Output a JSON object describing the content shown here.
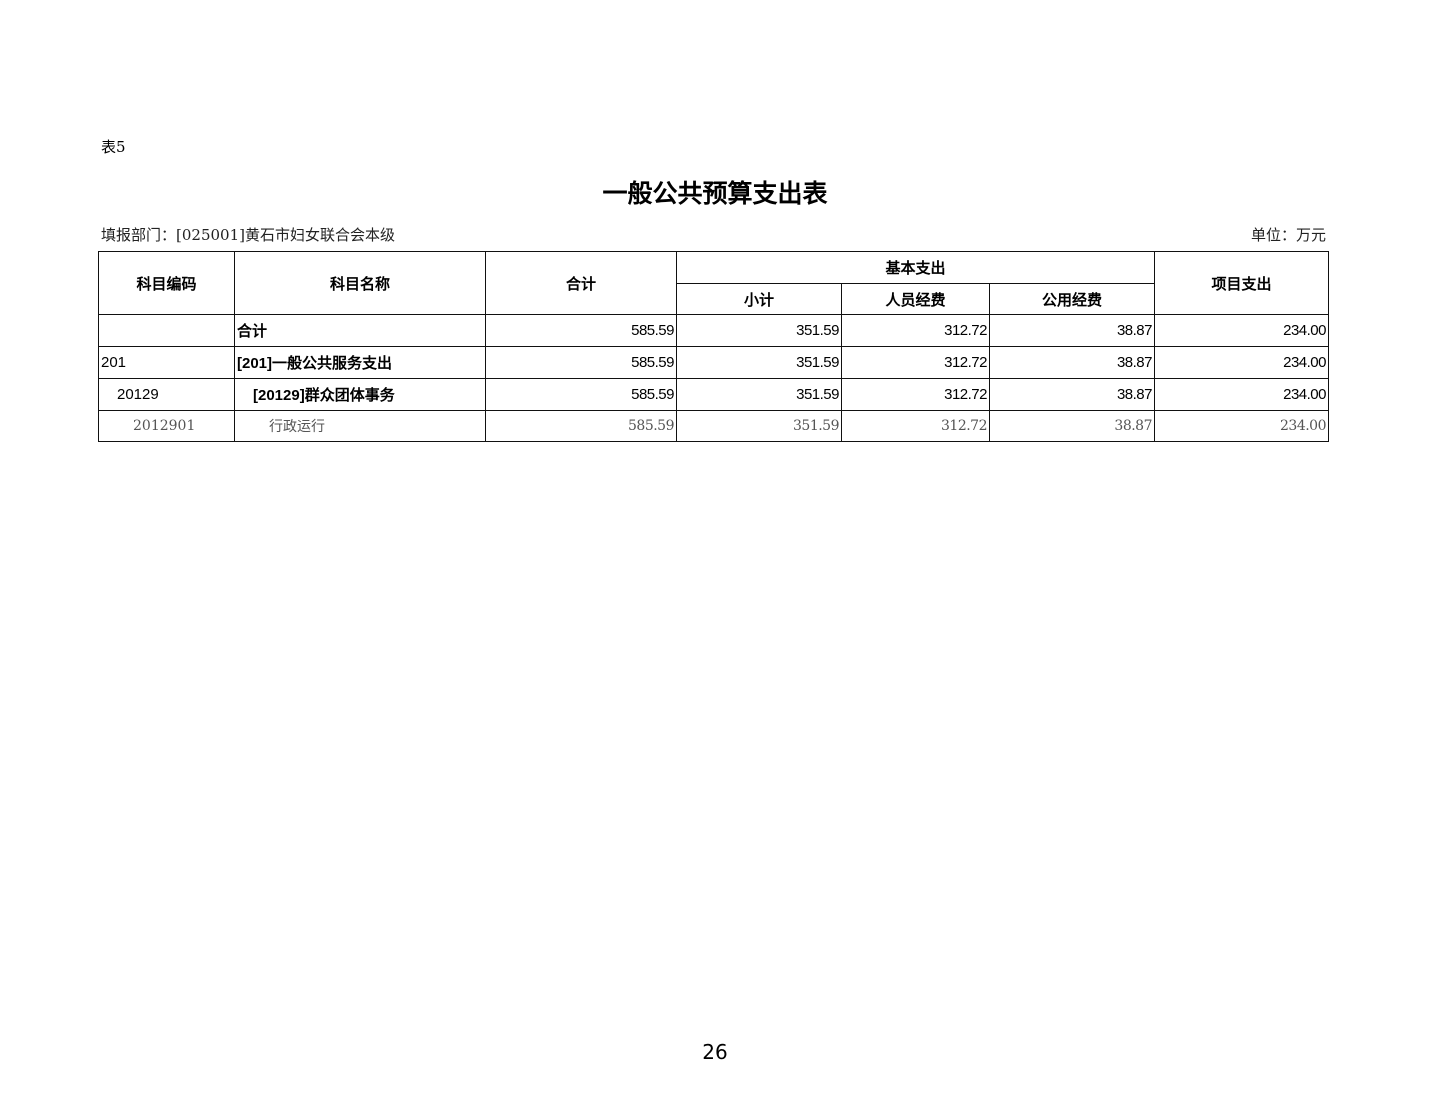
{
  "table_label": "表5",
  "title": "一般公共预算支出表",
  "department": "填报部门：[025001]黄石市妇女联合会本级",
  "unit": "单位：万元",
  "headers": {
    "code": "科目编码",
    "name": "科目名称",
    "total": "合计",
    "basic": "基本支出",
    "subtotal": "小计",
    "personnel": "人员经费",
    "public": "公用经费",
    "project": "项目支出"
  },
  "rows": [
    {
      "code": "",
      "name": "合计",
      "total": "585.59",
      "subtotal": "351.59",
      "personnel": "312.72",
      "public": "38.87",
      "project": "234.00"
    },
    {
      "code": "201",
      "name": "[201]一般公共服务支出",
      "total": "585.59",
      "subtotal": "351.59",
      "personnel": "312.72",
      "public": "38.87",
      "project": "234.00"
    },
    {
      "code": "20129",
      "name": "[20129]群众团体事务",
      "total": "585.59",
      "subtotal": "351.59",
      "personnel": "312.72",
      "public": "38.87",
      "project": "234.00"
    },
    {
      "code": "2012901",
      "name": "行政运行",
      "total": "585.59",
      "subtotal": "351.59",
      "personnel": "312.72",
      "public": "38.87",
      "project": "234.00"
    }
  ],
  "page_number": "26"
}
